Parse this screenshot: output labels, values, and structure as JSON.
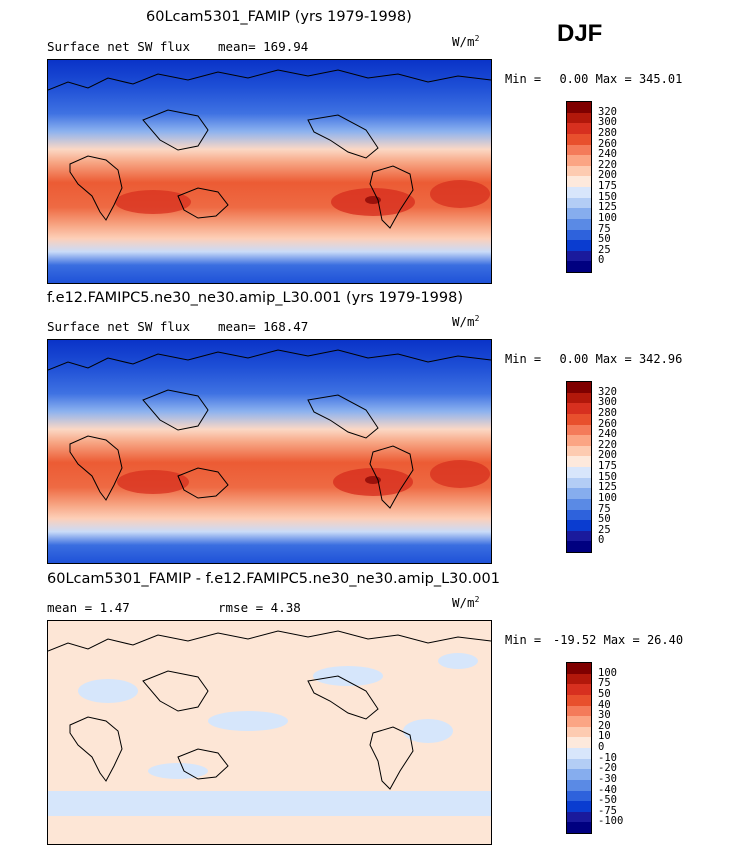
{
  "season": "DJF",
  "panels": [
    {
      "title": "60Lcam5301_FAMIP (yrs 1979-1998)",
      "subtitle_left": "Surface net SW flux",
      "subtitle_right": "mean= 169.94",
      "units": "W/m",
      "units_exp": "2",
      "min_label": "Min =",
      "min_value": "0.00",
      "max_label": "Max =",
      "max_value": "345.01",
      "colorbar_labels": [
        "320",
        "300",
        "280",
        "260",
        "240",
        "220",
        "200",
        "175",
        "150",
        "125",
        "100",
        "75",
        "50",
        "25",
        "0"
      ]
    },
    {
      "title": "f.e12.FAMIPC5.ne30_ne30.amip_L30.001 (yrs 1979-1998)",
      "subtitle_left": "Surface net SW flux",
      "subtitle_right": "mean= 168.47",
      "units": "W/m",
      "units_exp": "2",
      "min_label": "Min =",
      "min_value": "0.00",
      "max_label": "Max =",
      "max_value": "342.96",
      "colorbar_labels": [
        "320",
        "300",
        "280",
        "260",
        "240",
        "220",
        "200",
        "175",
        "150",
        "125",
        "100",
        "75",
        "50",
        "25",
        "0"
      ]
    },
    {
      "title": "60Lcam5301_FAMIP - f.e12.FAMIPC5.ne30_ne30.amip_L30.001",
      "subtitle_left": "mean =   1.47",
      "subtitle_right": "rmse =   4.38",
      "units": "W/m",
      "units_exp": "2",
      "min_label": "Min =",
      "min_value": "-19.52",
      "max_label": "Max =",
      "max_value": "26.40",
      "colorbar_labels": [
        "100",
        "75",
        "50",
        "40",
        "30",
        "20",
        "10",
        "0",
        "-10",
        "-20",
        "-30",
        "-40",
        "-50",
        "-75",
        "-100"
      ]
    }
  ],
  "colors": {
    "colorbar": [
      "#7f0000",
      "#b2180b",
      "#d7301f",
      "#e8502d",
      "#f47b5a",
      "#fba584",
      "#fdcbb1",
      "#fde9dc",
      "#d8e6fb",
      "#b3cdf5",
      "#86adee",
      "#5a8ae5",
      "#2e62dc",
      "#0a3cd0",
      "#1a1a9c",
      "#000080"
    ],
    "land": "#f3c7b0",
    "ocean_high": "#1e4fd6",
    "diff_bg": "#fde6d6",
    "diff_blue": "#d6e6fb"
  }
}
